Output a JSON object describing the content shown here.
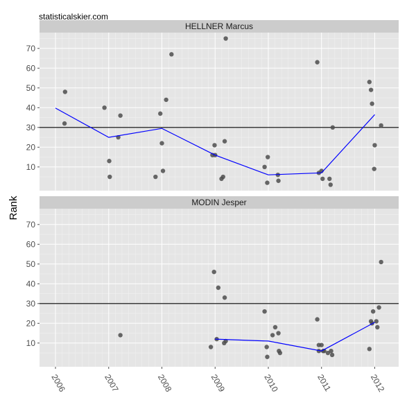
{
  "watermark": "statisticalskier.com",
  "chart_data": {
    "type": "scatter",
    "ylabel": "Rank",
    "xlabel": "",
    "x_ticks": [
      "2006",
      "2007",
      "2008",
      "2009",
      "2010",
      "2011",
      "2012"
    ],
    "y_ticks": [
      10,
      20,
      30,
      40,
      50,
      60,
      70
    ],
    "xlim": [
      2005.7,
      2012.45
    ],
    "ylim": [
      -2,
      78
    ],
    "reference_line": 30,
    "grid": true,
    "colors": {
      "panel_bg": "#E5E5E5",
      "strip_bg": "#CCCCCC",
      "grid_major": "#FFFFFF",
      "grid_minor": "#F2F2F2",
      "points": "#4D4D4D",
      "trend": "#0000FF",
      "reference": "#000000",
      "tick_text": "#4D4D4D"
    },
    "panels": [
      {
        "name": "HELLNER Marcus",
        "points": [
          [
            2006.18,
            48
          ],
          [
            2006.17,
            32
          ],
          [
            2006.92,
            40
          ],
          [
            2007.01,
            13
          ],
          [
            2007.02,
            5
          ],
          [
            2007.18,
            25
          ],
          [
            2007.22,
            36
          ],
          [
            2007.88,
            5
          ],
          [
            2007.97,
            37
          ],
          [
            2008.0,
            22
          ],
          [
            2008.02,
            8
          ],
          [
            2008.08,
            44
          ],
          [
            2008.18,
            67
          ],
          [
            2008.95,
            16
          ],
          [
            2008.99,
            21
          ],
          [
            2009.0,
            16
          ],
          [
            2009.12,
            4
          ],
          [
            2009.15,
            5
          ],
          [
            2009.18,
            23
          ],
          [
            2009.2,
            75
          ],
          [
            2009.93,
            10
          ],
          [
            2009.98,
            2
          ],
          [
            2009.99,
            15
          ],
          [
            2010.18,
            6
          ],
          [
            2010.19,
            3
          ],
          [
            2010.92,
            63
          ],
          [
            2010.95,
            7
          ],
          [
            2011.0,
            8
          ],
          [
            2011.02,
            4
          ],
          [
            2011.15,
            4
          ],
          [
            2011.17,
            1
          ],
          [
            2011.21,
            30
          ],
          [
            2011.9,
            53
          ],
          [
            2011.93,
            49
          ],
          [
            2011.95,
            42
          ],
          [
            2011.99,
            9
          ],
          [
            2012.0,
            21
          ],
          [
            2012.12,
            31
          ]
        ],
        "trend": [
          [
            2006.0,
            39.8
          ],
          [
            2007.0,
            25
          ],
          [
            2008.0,
            29.5
          ],
          [
            2009.0,
            16
          ],
          [
            2010.0,
            6
          ],
          [
            2011.0,
            7
          ],
          [
            2012.0,
            36.5
          ]
        ]
      },
      {
        "name": "MODIN Jesper",
        "points": [
          [
            2007.22,
            14
          ],
          [
            2008.92,
            8
          ],
          [
            2008.98,
            46
          ],
          [
            2009.03,
            12
          ],
          [
            2009.06,
            38
          ],
          [
            2009.17,
            10
          ],
          [
            2009.18,
            33
          ],
          [
            2009.2,
            11
          ],
          [
            2009.93,
            26
          ],
          [
            2009.97,
            8
          ],
          [
            2009.98,
            3
          ],
          [
            2010.08,
            14
          ],
          [
            2010.13,
            18
          ],
          [
            2010.19,
            15
          ],
          [
            2010.2,
            6
          ],
          [
            2010.22,
            5
          ],
          [
            2010.92,
            22
          ],
          [
            2010.95,
            9
          ],
          [
            2010.95,
            6
          ],
          [
            2011.0,
            9
          ],
          [
            2011.03,
            6
          ],
          [
            2011.05,
            6
          ],
          [
            2011.12,
            5
          ],
          [
            2011.18,
            6
          ],
          [
            2011.2,
            4
          ],
          [
            2011.9,
            7
          ],
          [
            2011.93,
            21
          ],
          [
            2011.95,
            20
          ],
          [
            2011.97,
            26
          ],
          [
            2012.03,
            21
          ],
          [
            2012.05,
            18
          ],
          [
            2012.08,
            28
          ],
          [
            2012.12,
            51
          ]
        ],
        "trend": [
          [
            2009.0,
            12
          ],
          [
            2010.0,
            11
          ],
          [
            2011.0,
            6
          ],
          [
            2012.0,
            20.5
          ]
        ]
      }
    ]
  }
}
